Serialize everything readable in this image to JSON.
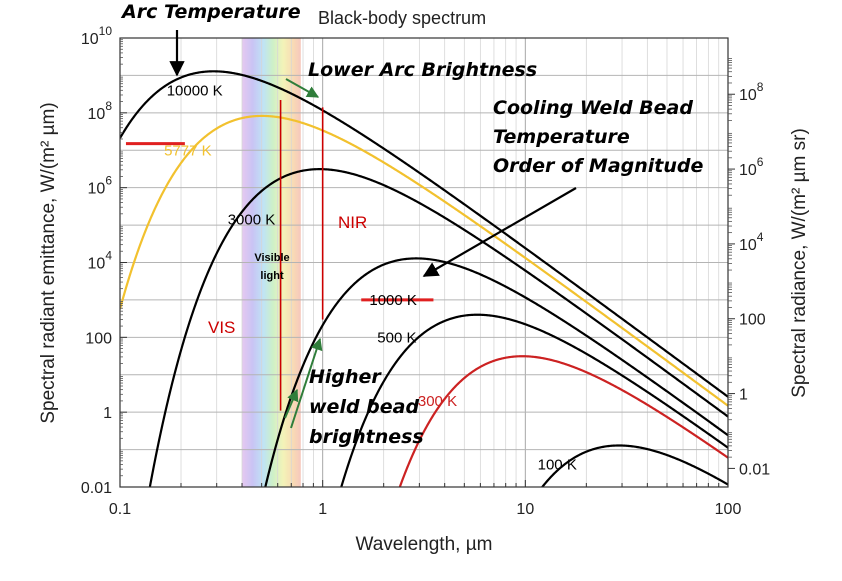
{
  "chart_data": {
    "type": "line",
    "title": "Black-body spectrum",
    "xlabel": "Wavelength, µm",
    "ylabel_left": "Spectral radiant emittance, W/(m² µm)",
    "ylabel_right": "Spectral radiance, W/(m² µm sr)",
    "x_scale": "log",
    "y_scale": "log",
    "xlim": [
      0.1,
      100
    ],
    "ylim": [
      0.01,
      10000000000
    ],
    "x_ticks": [
      {
        "value": 0.1,
        "label": "0.1"
      },
      {
        "value": 1,
        "label": "1"
      },
      {
        "value": 10,
        "label": "10"
      },
      {
        "value": 100,
        "label": "100"
      }
    ],
    "y_ticks_left": [
      {
        "value": 0.01,
        "base": "0.01",
        "exp": ""
      },
      {
        "value": 1,
        "base": "1",
        "exp": ""
      },
      {
        "value": 100,
        "base": "100",
        "exp": ""
      },
      {
        "value": 10000,
        "base": "10",
        "exp": "4"
      },
      {
        "value": 1000000,
        "base": "10",
        "exp": "6"
      },
      {
        "value": 100000000,
        "base": "10",
        "exp": "8"
      },
      {
        "value": 10000000000,
        "base": "10",
        "exp": "10"
      }
    ],
    "y_ticks_right": [
      {
        "value": 0.0314,
        "base": "0.01",
        "exp": ""
      },
      {
        "value": 3.14,
        "base": "1",
        "exp": ""
      },
      {
        "value": 314,
        "base": "100",
        "exp": ""
      },
      {
        "value": 31400,
        "base": "10",
        "exp": "4"
      },
      {
        "value": 3140000,
        "base": "10",
        "exp": "6"
      },
      {
        "value": 314000000,
        "base": "10",
        "exp": "8"
      }
    ],
    "grid": true,
    "visible_band": [
      0.4,
      0.78
    ],
    "series": [
      {
        "name": "10000 K",
        "temperature": 10000,
        "color": "#000000"
      },
      {
        "name": "5777 K",
        "temperature": 5777,
        "color": "#f2c12e"
      },
      {
        "name": "3000 K",
        "temperature": 3000,
        "color": "#000000"
      },
      {
        "name": "1000 K",
        "temperature": 1000,
        "color": "#000000"
      },
      {
        "name": "500 K",
        "temperature": 500,
        "color": "#000000"
      },
      {
        "name": "300 K",
        "temperature": 300,
        "color": "#cc2222"
      },
      {
        "name": "100 K",
        "temperature": 100,
        "color": "#000000"
      }
    ],
    "curve_labels": [
      {
        "text": "10000 K",
        "x": 0.17,
        "y": 400000000,
        "color": "#000000"
      },
      {
        "text": "5777 K",
        "x": 0.165,
        "y": 10000000,
        "color": "#f2c12e"
      },
      {
        "text": "3000 K",
        "x": 0.34,
        "y": 140000,
        "color": "#000000"
      },
      {
        "text": "1000 K",
        "x": 1.7,
        "y": 1000,
        "color": "#000000"
      },
      {
        "text": "500 K",
        "x": 1.86,
        "y": 100,
        "color": "#000000"
      },
      {
        "text": "300 K",
        "x": 2.95,
        "y": 2,
        "color": "#cc2222"
      },
      {
        "text": "100 K",
        "x": 11.5,
        "y": 0.04,
        "color": "#000000"
      }
    ],
    "vertical_lines": [
      {
        "x": 0.62,
        "y_from": 1.1,
        "y_to": 220000000,
        "color": "#cc0000"
      },
      {
        "x": 1.0,
        "y_from": 300,
        "y_to": 140000000,
        "color": "#cc0000"
      }
    ],
    "highlight_bars": [
      {
        "x_from": 0.107,
        "x_to": 0.209,
        "y": 15000000,
        "color": "#e02020"
      },
      {
        "x_from": 1.55,
        "x_to": 3.52,
        "y": 1000,
        "color": "#e02020"
      }
    ],
    "region_labels": [
      {
        "text": "VIS",
        "x": 0.46,
        "y": 80,
        "color": "#cc0000"
      },
      {
        "text": "NIR",
        "x": 1.17,
        "y": 80000,
        "color": "#cc0000"
      }
    ],
    "visible_light_label": [
      "Visible",
      "light"
    ],
    "annotations": [
      {
        "lines": [
          "Arc Temperature"
        ]
      },
      {
        "lines": [
          "Lower Arc Brightness"
        ]
      },
      {
        "lines": [
          "Cooling Weld Bead",
          "Temperature",
          "Order of Magnitude"
        ]
      },
      {
        "lines": [
          "Higher",
          "weld bead",
          "brightness"
        ]
      }
    ]
  }
}
